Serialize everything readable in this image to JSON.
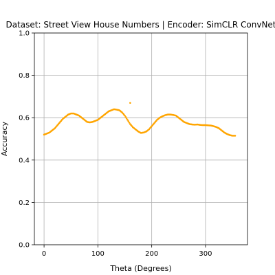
{
  "chart_data": {
    "type": "scatter",
    "title": "Dataset: Street View House Numbers | Encoder: SimCLR ConvNet",
    "xlabel": "Theta (Degrees)",
    "ylabel": "Accuracy",
    "xlim": [
      -18,
      378
    ],
    "ylim": [
      0.0,
      1.0
    ],
    "xticks": [
      0,
      100,
      200,
      300
    ],
    "yticks": [
      0.0,
      0.2,
      0.4,
      0.6,
      0.8,
      1.0
    ],
    "xtick_labels": [
      "0",
      "100",
      "200",
      "300"
    ],
    "ytick_labels": [
      "0.0",
      "0.2",
      "0.4",
      "0.6",
      "0.8",
      "1.0"
    ],
    "grid": true,
    "marker_color": "#ffa500",
    "series": [
      {
        "x": [
          0,
          5,
          10,
          15,
          20,
          25,
          30,
          35,
          40,
          45,
          50,
          55,
          60,
          65,
          70,
          75,
          80,
          85,
          90,
          95,
          100,
          105,
          110,
          115,
          120,
          125,
          130,
          135,
          140,
          145,
          150,
          155,
          160,
          165,
          170,
          175,
          180,
          185,
          190,
          195,
          200,
          205,
          210,
          215,
          220,
          225,
          230,
          235,
          240,
          245,
          250,
          255,
          260,
          265,
          270,
          275,
          280,
          285,
          290,
          295,
          300,
          305,
          310,
          315,
          320,
          325,
          330,
          335,
          340,
          345,
          350,
          355,
          160
        ],
        "y": [
          0.52,
          0.525,
          0.53,
          0.54,
          0.55,
          0.565,
          0.58,
          0.595,
          0.605,
          0.615,
          0.62,
          0.62,
          0.615,
          0.61,
          0.6,
          0.59,
          0.58,
          0.578,
          0.58,
          0.585,
          0.59,
          0.6,
          0.61,
          0.62,
          0.63,
          0.635,
          0.64,
          0.638,
          0.635,
          0.625,
          0.61,
          0.59,
          0.57,
          0.555,
          0.545,
          0.535,
          0.528,
          0.53,
          0.535,
          0.545,
          0.56,
          0.575,
          0.59,
          0.6,
          0.607,
          0.612,
          0.615,
          0.615,
          0.613,
          0.61,
          0.6,
          0.59,
          0.58,
          0.575,
          0.57,
          0.568,
          0.567,
          0.568,
          0.566,
          0.565,
          0.565,
          0.564,
          0.563,
          0.56,
          0.556,
          0.55,
          0.54,
          0.53,
          0.523,
          0.518,
          0.515,
          0.515,
          0.67
        ]
      }
    ]
  }
}
